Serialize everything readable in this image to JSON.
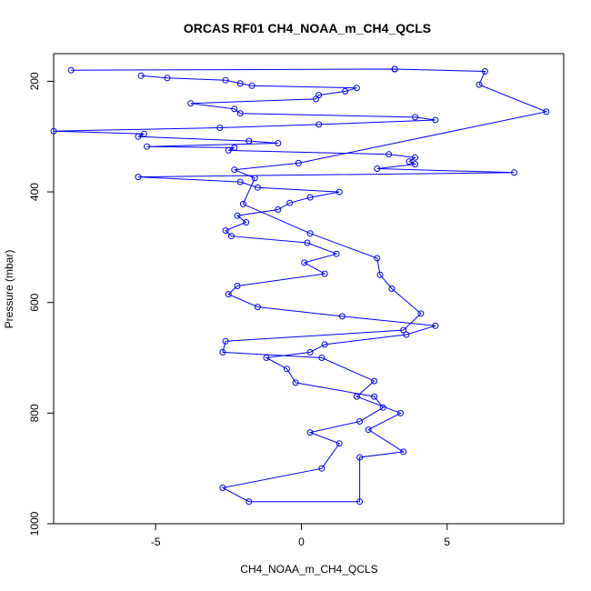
{
  "chart_data": {
    "type": "line",
    "title": "ORCAS RF01 CH4_NOAA_m_CH4_QCLS",
    "xlabel": "CH4_NOAA_m_CH4_QCLS",
    "ylabel": "Pressure (mbar)",
    "xlim": [
      -8.5,
      9.0
    ],
    "ylim": [
      1000,
      150
    ],
    "y_reversed": true,
    "x_ticks": [
      -5,
      0,
      5
    ],
    "x_tick_labels": [
      "-5",
      "0",
      "5"
    ],
    "y_ticks": [
      200,
      400,
      600,
      800,
      1000
    ],
    "y_tick_labels": [
      "200",
      "400",
      "600",
      "800",
      "1000"
    ],
    "line_color": "#0000ff",
    "marker": "open-circle",
    "grid": false,
    "series": [
      {
        "x": [
          3.2,
          -7.9,
          3.2,
          6.3,
          6.1,
          8.4,
          -0.1,
          -2.3,
          -1.6,
          -2.0,
          0.3,
          2.6,
          2.7,
          3.1,
          4.1,
          3.5,
          -2.6,
          -2.7,
          0.7,
          2.5,
          1.9,
          3.4,
          2.3,
          3.5,
          2.0,
          2.0,
          -1.8,
          -2.7,
          0.7,
          1.3,
          0.3,
          2.0,
          2.8,
          2.5,
          -0.2,
          -0.5,
          -1.2,
          0.3,
          0.8,
          3.6,
          4.6,
          1.4,
          -1.5,
          -2.5,
          -2.2,
          0.8,
          0.1,
          1.2,
          0.2,
          -2.4,
          -2.6,
          -1.9,
          -2.2,
          -0.8,
          -0.4,
          0.3,
          1.3,
          -1.5,
          -2.1,
          -5.6,
          7.3,
          2.6,
          3.9,
          3.7,
          3.9,
          3.0,
          -2.5,
          -2.3,
          -5.3,
          -0.8,
          -1.8,
          -5.6,
          -5.4,
          -8.5,
          -2.8,
          0.6,
          4.6,
          3.9,
          -2.1,
          -2.3,
          -3.8,
          0.5,
          0.6,
          1.5,
          1.9,
          -1.7,
          -2.1,
          -2.6,
          -4.6,
          -5.5
        ],
        "y": [
          178,
          180,
          178,
          182,
          206,
          255,
          348,
          360,
          375,
          422,
          475,
          520,
          550,
          575,
          620,
          650,
          670,
          690,
          700,
          742,
          770,
          800,
          830,
          870,
          880,
          960,
          960,
          935,
          900,
          855,
          835,
          815,
          790,
          770,
          745,
          720,
          700,
          690,
          676,
          658,
          642,
          625,
          608,
          585,
          570,
          548,
          528,
          512,
          492,
          480,
          470,
          455,
          443,
          432,
          420,
          410,
          400,
          392,
          382,
          373,
          365,
          358,
          350,
          345,
          338,
          332,
          325,
          320,
          318,
          312,
          308,
          300,
          295,
          290,
          284,
          278,
          270,
          265,
          258,
          250,
          240,
          232,
          225,
          218,
          212,
          208,
          204,
          198,
          194,
          190
        ]
      }
    ]
  }
}
